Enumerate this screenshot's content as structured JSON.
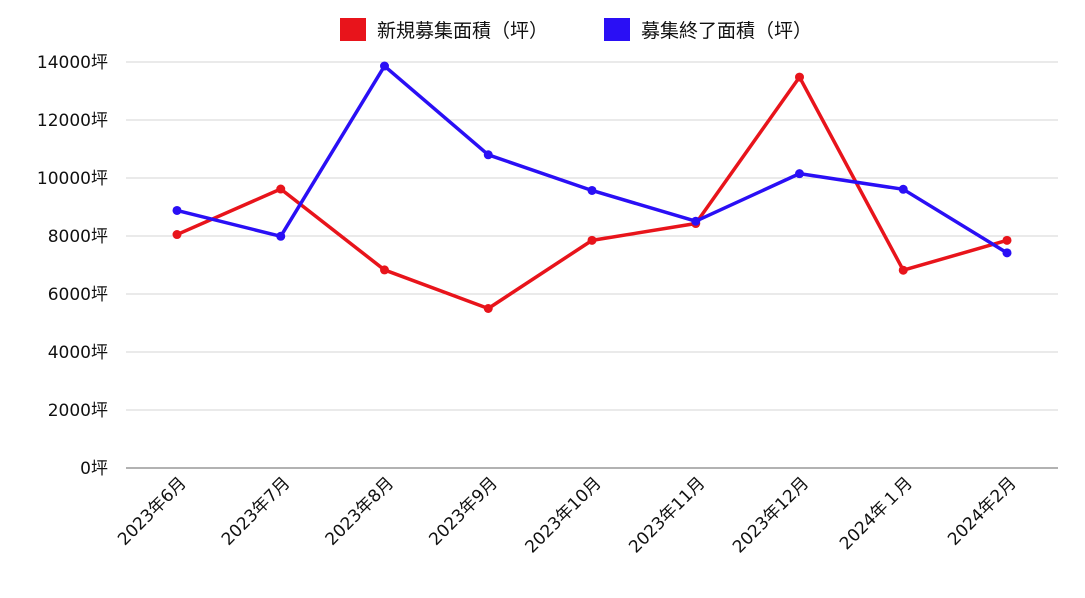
{
  "chart_data": {
    "type": "line",
    "categories": [
      "2023年6月",
      "2023年7月",
      "2023年8月",
      "2023年9月",
      "2023年10月",
      "2023年11月",
      "2023年12月",
      "2024年１月",
      "2024年2月"
    ],
    "series": [
      {
        "name": "新規募集面積（坪）",
        "color": "#e8141b",
        "values": [
          8050,
          9620,
          6830,
          5500,
          7850,
          8430,
          13480,
          6820,
          7850
        ]
      },
      {
        "name": "募集終了面積（坪）",
        "color": "#2a0ff5",
        "values": [
          8880,
          7990,
          13860,
          10800,
          9570,
          8510,
          10150,
          9610,
          7420
        ]
      }
    ],
    "y_ticks": [
      "0坪",
      "2000坪",
      "4000坪",
      "6000坪",
      "8000坪",
      "10000坪",
      "12000坪",
      "14000坪"
    ],
    "ylim": [
      0,
      14000
    ],
    "grid": true,
    "legend_position": "top-center"
  }
}
